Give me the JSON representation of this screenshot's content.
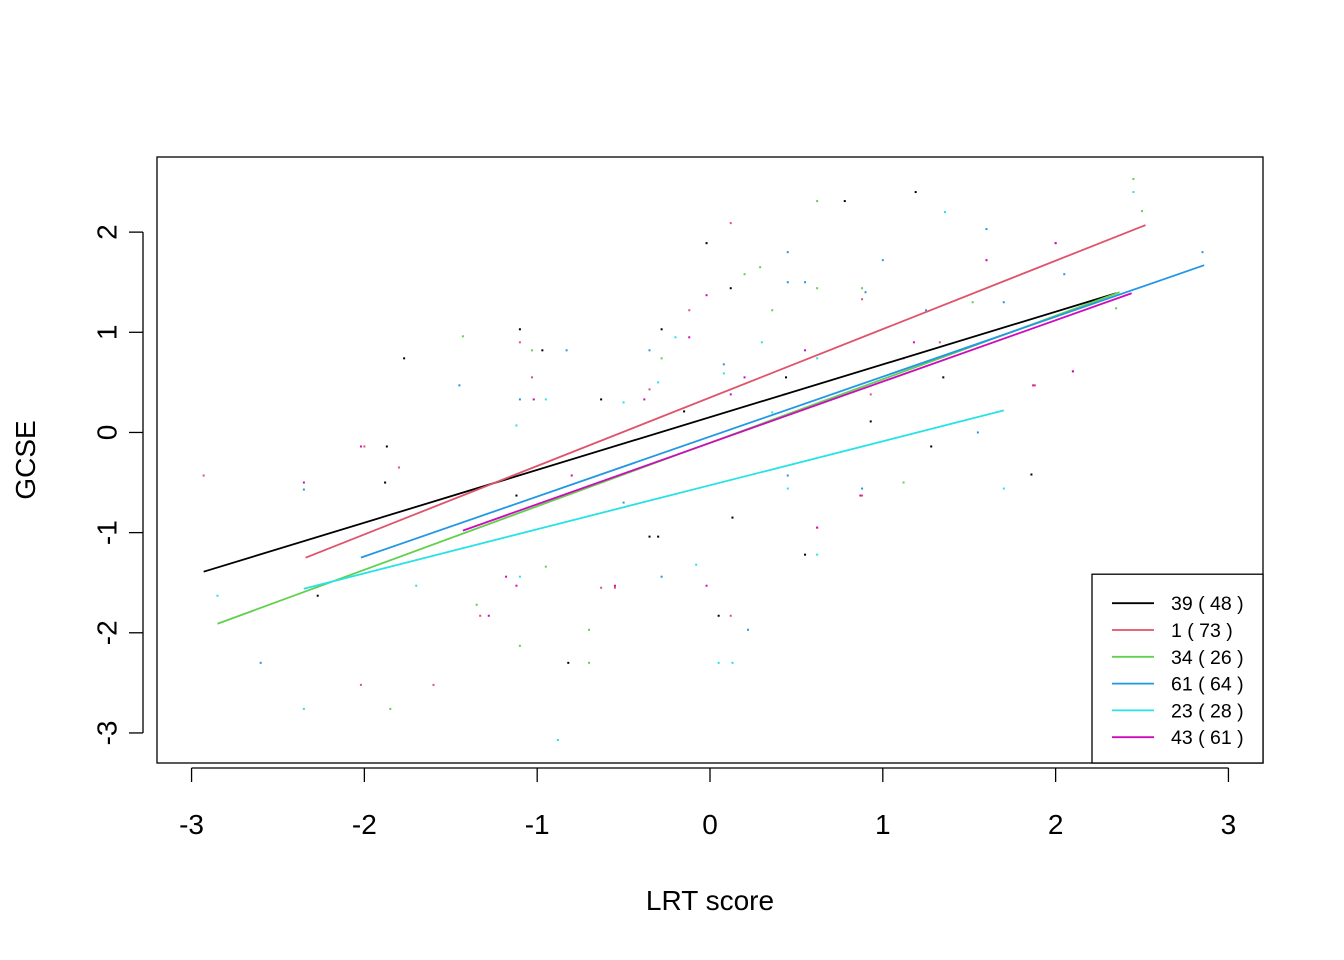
{
  "chart_data": {
    "type": "scatter",
    "xlabel": "LRT score",
    "ylabel": "GCSE",
    "xlim": [
      -3.2,
      3.2
    ],
    "ylim": [
      -3.3,
      2.75
    ],
    "xticks": [
      -3,
      -2,
      -1,
      0,
      1,
      2,
      3
    ],
    "yticks": [
      -3,
      -2,
      -1,
      0,
      1,
      2
    ],
    "xtick_labels": [
      "-3",
      "-2",
      "-1",
      "0",
      "1",
      "2",
      "3"
    ],
    "ytick_labels": [
      "-3",
      "-2",
      "-1",
      "0",
      "1",
      "2"
    ],
    "legend_position": "bottom-right",
    "series": [
      {
        "name": "39 ( 48 )",
        "color": "#000000",
        "line": [
          [
            -2.93,
            -1.39
          ],
          [
            2.35,
            1.39
          ]
        ],
        "points": [
          [
            -1.77,
            0.74
          ],
          [
            -1.87,
            -0.14
          ],
          [
            -1.1,
            1.03
          ],
          [
            -0.97,
            0.82
          ],
          [
            -0.28,
            1.03
          ],
          [
            0.12,
            1.44
          ],
          [
            -0.02,
            1.89
          ],
          [
            0.78,
            2.31
          ],
          [
            1.19,
            2.4
          ],
          [
            0.44,
            0.55
          ],
          [
            0.93,
            0.11
          ],
          [
            1.28,
            -0.14
          ],
          [
            1.35,
            0.55
          ],
          [
            1.86,
            -0.42
          ],
          [
            -0.82,
            -2.3
          ],
          [
            0.05,
            -1.83
          ],
          [
            0.55,
            -1.22
          ],
          [
            -2.27,
            -1.63
          ],
          [
            -0.35,
            -1.04
          ],
          [
            -0.3,
            -1.04
          ],
          [
            -0.63,
            0.33
          ],
          [
            -0.15,
            0.21
          ],
          [
            0.13,
            -0.85
          ],
          [
            -1.12,
            -0.63
          ],
          [
            -1.88,
            -0.5
          ]
        ]
      },
      {
        "name": "1 ( 73 )",
        "color": "#DF536B",
        "line": [
          [
            -2.34,
            -1.25
          ],
          [
            2.52,
            2.07
          ]
        ],
        "points": [
          [
            -2.93,
            -0.43
          ],
          [
            -2.0,
            -0.14
          ],
          [
            -1.8,
            -0.35
          ],
          [
            -1.1,
            0.9
          ],
          [
            -1.03,
            0.55
          ],
          [
            -0.35,
            0.43
          ],
          [
            -0.12,
            1.22
          ],
          [
            0.12,
            2.09
          ],
          [
            0.88,
            1.33
          ],
          [
            0.93,
            0.38
          ],
          [
            1.12,
            0.74
          ],
          [
            1.33,
            0.9
          ],
          [
            1.6,
            1.72
          ],
          [
            2.0,
            1.89
          ],
          [
            2.1,
            0.61
          ],
          [
            1.88,
            0.47
          ],
          [
            -2.02,
            -2.52
          ],
          [
            -1.6,
            -2.52
          ],
          [
            -0.55,
            -1.55
          ],
          [
            0.12,
            -1.83
          ],
          [
            0.62,
            -0.95
          ],
          [
            0.88,
            -0.63
          ],
          [
            -1.33,
            -1.83
          ],
          [
            -0.63,
            -1.55
          ]
        ]
      },
      {
        "name": "34 ( 26 )",
        "color": "#61D04F",
        "line": [
          [
            -2.85,
            -1.91
          ],
          [
            2.37,
            1.4
          ]
        ],
        "points": [
          [
            -1.43,
            0.96
          ],
          [
            -1.03,
            0.82
          ],
          [
            -0.28,
            0.74
          ],
          [
            0.2,
            1.58
          ],
          [
            0.29,
            1.65
          ],
          [
            0.36,
            1.22
          ],
          [
            0.62,
            2.31
          ],
          [
            0.88,
            1.44
          ],
          [
            1.12,
            -0.5
          ],
          [
            1.52,
            1.3
          ],
          [
            2.35,
            1.24
          ],
          [
            2.45,
            2.53
          ],
          [
            2.5,
            2.21
          ],
          [
            -1.85,
            -2.76
          ],
          [
            -1.1,
            -2.13
          ],
          [
            -0.7,
            -1.97
          ],
          [
            -0.7,
            -2.3
          ],
          [
            -1.35,
            -1.72
          ],
          [
            -0.95,
            -1.34
          ],
          [
            0.62,
            1.44
          ],
          [
            0.43,
            0.38
          ]
        ]
      },
      {
        "name": "61 ( 64 )",
        "color": "#2297E6",
        "line": [
          [
            -2.02,
            -1.25
          ],
          [
            2.86,
            1.67
          ]
        ],
        "points": [
          [
            -2.6,
            -2.3
          ],
          [
            -1.45,
            0.47
          ],
          [
            -0.83,
            0.82
          ],
          [
            -0.35,
            0.82
          ],
          [
            0.08,
            0.68
          ],
          [
            0.45,
            1.8
          ],
          [
            0.45,
            1.5
          ],
          [
            0.55,
            1.5
          ],
          [
            0.9,
            1.4
          ],
          [
            1.0,
            1.72
          ],
          [
            1.25,
            1.22
          ],
          [
            1.6,
            2.03
          ],
          [
            1.7,
            1.3
          ],
          [
            2.05,
            1.58
          ],
          [
            2.85,
            1.8
          ],
          [
            -0.28,
            -1.44
          ],
          [
            0.22,
            -1.97
          ],
          [
            0.45,
            -0.43
          ],
          [
            0.88,
            -0.56
          ],
          [
            1.55,
            0.0
          ],
          [
            -2.35,
            -0.57
          ],
          [
            -1.1,
            0.33
          ],
          [
            -0.85,
            -0.63
          ],
          [
            -0.5,
            -0.7
          ]
        ]
      },
      {
        "name": "23 ( 28 )",
        "color": "#28E2E5",
        "line": [
          [
            -2.35,
            -1.56
          ],
          [
            1.7,
            0.22
          ]
        ],
        "points": [
          [
            -2.85,
            -1.63
          ],
          [
            -2.35,
            -2.76
          ],
          [
            -1.1,
            -1.44
          ],
          [
            -0.88,
            -3.07
          ],
          [
            0.05,
            -2.3
          ],
          [
            0.13,
            -2.3
          ],
          [
            0.62,
            -1.22
          ],
          [
            0.62,
            0.74
          ],
          [
            1.36,
            2.2
          ],
          [
            2.45,
            2.4
          ],
          [
            1.7,
            -0.56
          ],
          [
            0.45,
            -0.56
          ],
          [
            0.08,
            0.59
          ],
          [
            -0.5,
            0.3
          ],
          [
            -0.2,
            0.95
          ],
          [
            0.3,
            0.9
          ],
          [
            -1.12,
            0.07
          ],
          [
            -1.7,
            -1.53
          ],
          [
            -0.08,
            -1.32
          ],
          [
            -0.95,
            0.33
          ],
          [
            0.36,
            0.2
          ],
          [
            -0.3,
            0.5
          ]
        ]
      },
      {
        "name": "43 ( 61 )",
        "color": "#CD0BBC",
        "line": [
          [
            -1.43,
            -0.98
          ],
          [
            2.44,
            1.39
          ]
        ],
        "points": [
          [
            -2.35,
            -0.5
          ],
          [
            -2.02,
            -0.14
          ],
          [
            -1.18,
            -1.44
          ],
          [
            -1.28,
            -1.83
          ],
          [
            -1.02,
            0.33
          ],
          [
            -0.38,
            0.33
          ],
          [
            -0.12,
            0.95
          ],
          [
            -0.02,
            1.37
          ],
          [
            0.12,
            0.38
          ],
          [
            0.2,
            0.55
          ],
          [
            0.55,
            0.82
          ],
          [
            0.87,
            -0.63
          ],
          [
            1.18,
            0.9
          ],
          [
            1.6,
            1.72
          ],
          [
            2.0,
            1.89
          ],
          [
            2.1,
            0.61
          ],
          [
            1.87,
            0.47
          ],
          [
            -0.55,
            -1.53
          ],
          [
            -0.02,
            -1.53
          ],
          [
            0.62,
            -0.95
          ],
          [
            -1.12,
            -1.53
          ],
          [
            -0.8,
            -0.43
          ]
        ]
      }
    ]
  }
}
